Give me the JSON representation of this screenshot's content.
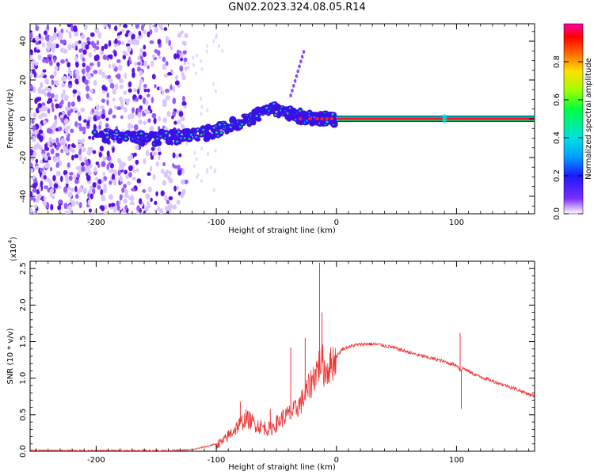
{
  "title": "GN02.2023.324.08.05.R14",
  "colors": {
    "spectrum_blue": "#3b10e6",
    "spectrum_purple": "#7b2cff",
    "snr_line": "#ee3333"
  },
  "chart_data": [
    {
      "type": "heatmap",
      "title": "GN02.2023.324.08.05.R14",
      "xlabel": "Height of straight line (km)",
      "ylabel": "Frequency (Hz)",
      "xlim": [
        -255,
        165
      ],
      "ylim": [
        -49,
        49
      ],
      "x_ticks": [
        -200,
        -100,
        0,
        100
      ],
      "x_tick_labels": [
        "-200",
        "-100",
        "0",
        "100"
      ],
      "y_ticks": [
        -40,
        -20,
        0,
        20,
        40
      ],
      "y_tick_labels": [
        "-40",
        "-20",
        "0",
        "20",
        "40"
      ],
      "colorbar": {
        "label": "Normalized spectral amplitude",
        "range": [
          0,
          1
        ],
        "ticks": [
          0.0,
          0.2,
          0.4,
          0.6,
          0.8
        ],
        "tick_labels": [
          "0.0",
          "0.2",
          "0.4",
          "0.6",
          "0.8"
        ]
      },
      "features": [
        {
          "name": "strong-band",
          "x_range": [
            0,
            165
          ],
          "frequency": 0,
          "amplitude": 0.95
        },
        {
          "name": "rising-trail",
          "points": [
            [
              -200,
              -8
            ],
            [
              -170,
              -10
            ],
            [
              -150,
              -10
            ],
            [
              -130,
              -9
            ],
            [
              -110,
              -8
            ],
            [
              -95,
              -5
            ],
            [
              -80,
              -2
            ],
            [
              -65,
              2
            ],
            [
              -50,
              5
            ],
            [
              -40,
              3
            ],
            [
              -30,
              1
            ],
            [
              -20,
              0
            ],
            [
              -10,
              0
            ],
            [
              0,
              0
            ]
          ],
          "amplitude": 0.35
        },
        {
          "name": "noise-field",
          "x_range": [
            -255,
            -125
          ],
          "frequency_range": [
            -49,
            49
          ],
          "amplitude": 0.15
        }
      ]
    },
    {
      "type": "line",
      "xlabel": "Height of straight line (km)",
      "ylabel": "SNR (10 * v/v)",
      "y_multiplier_label": "(x10",
      "y_multiplier_exponent": "4",
      "y_multiplier_close": ")",
      "xlim": [
        -255,
        165
      ],
      "ylim": [
        0,
        2.6
      ],
      "x_ticks": [
        -200,
        -100,
        0,
        100
      ],
      "x_tick_labels": [
        "-200",
        "-100",
        "0",
        "100"
      ],
      "y_ticks": [
        0.0,
        0.5,
        1.0,
        1.5,
        2.0,
        2.5
      ],
      "y_tick_labels": [
        "0.0",
        "0.5",
        "1.0",
        "1.5",
        "2.0",
        "2.5"
      ],
      "x": [
        -255,
        -230,
        -200,
        -170,
        -140,
        -120,
        -105,
        -95,
        -85,
        -75,
        -65,
        -55,
        -45,
        -35,
        -28,
        -22,
        -18,
        -14,
        -12,
        -10,
        -6,
        -2,
        5,
        15,
        25,
        35,
        45,
        55,
        65,
        75,
        85,
        95,
        101,
        103,
        105,
        115,
        130,
        145,
        165
      ],
      "y": [
        0.01,
        0.01,
        0.01,
        0.01,
        0.01,
        0.02,
        0.08,
        0.12,
        0.3,
        0.45,
        0.35,
        0.3,
        0.45,
        0.55,
        0.7,
        0.9,
        1.05,
        1.2,
        1.25,
        1.1,
        1.15,
        1.25,
        1.4,
        1.45,
        1.47,
        1.46,
        1.43,
        1.38,
        1.33,
        1.29,
        1.25,
        1.2,
        1.17,
        1.1,
        1.14,
        1.05,
        0.96,
        0.88,
        0.75
      ],
      "spikes": [
        {
          "x": -80,
          "y": 0.68
        },
        {
          "x": -55,
          "y": 0.58
        },
        {
          "x": -38,
          "y": 1.42
        },
        {
          "x": -26,
          "y": 1.55
        },
        {
          "x": -14,
          "y": 2.58
        },
        {
          "x": -12,
          "y": 1.9
        },
        {
          "x": 103,
          "y": 1.62
        },
        {
          "x": 104,
          "y": 0.58
        }
      ]
    }
  ]
}
